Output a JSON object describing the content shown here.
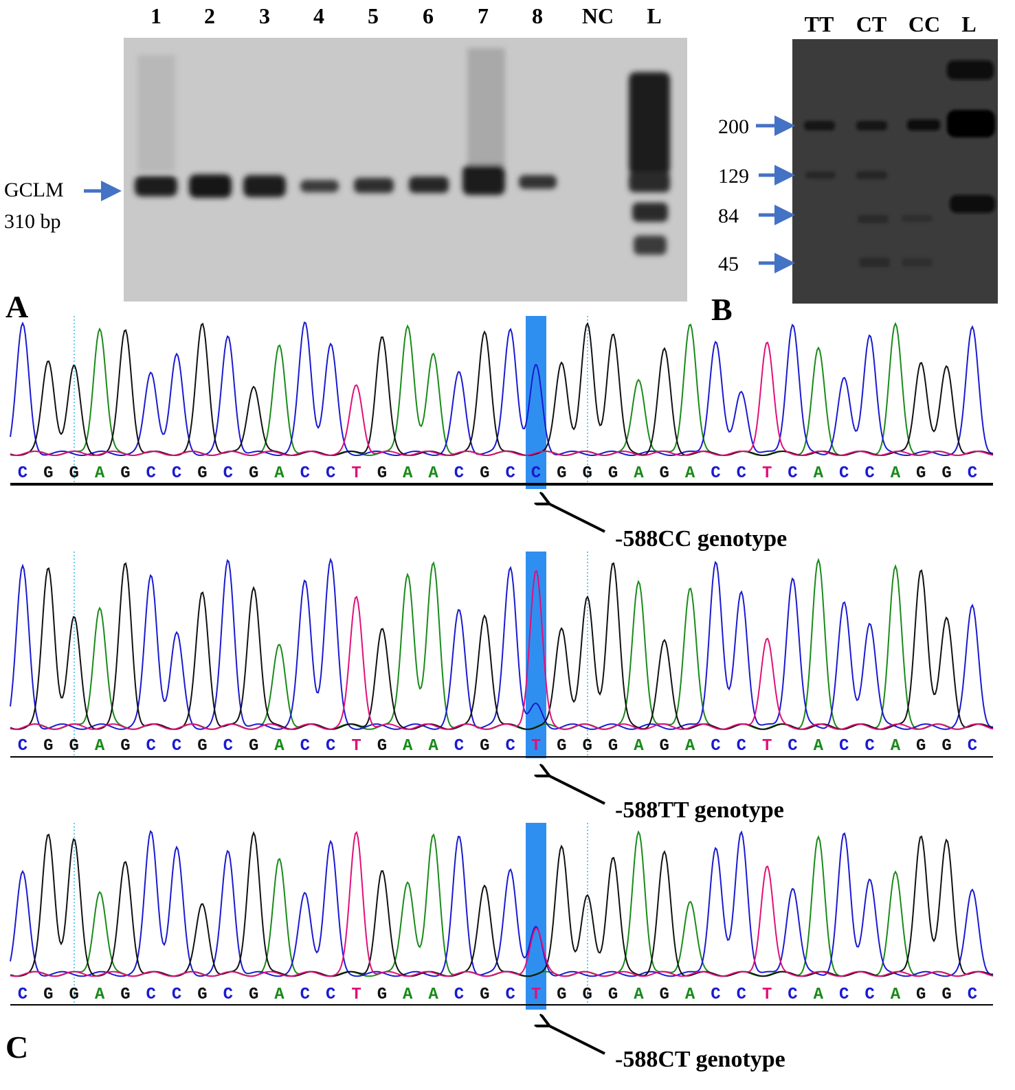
{
  "panel_a": {
    "label": "A",
    "lanes": [
      "1",
      "2",
      "3",
      "4",
      "5",
      "6",
      "7",
      "8",
      "NC",
      "L"
    ],
    "band_label": "GCLM",
    "band_size": "310 bp"
  },
  "panel_b": {
    "label": "B",
    "lanes": [
      "TT",
      "CT",
      "CC",
      "L"
    ],
    "sizes": [
      "200",
      "129",
      "84",
      "45"
    ]
  },
  "panel_c": {
    "label": "C",
    "chromatograms": [
      {
        "bases": [
          "C",
          "G",
          "G",
          "A",
          "G",
          "C",
          "C",
          "G",
          "C",
          "G",
          "A",
          "C",
          "C",
          "T",
          "G",
          "A",
          "A",
          "C",
          "G",
          "C",
          "C",
          "G",
          "G",
          "G",
          "A",
          "G",
          "A",
          "C",
          "C",
          "T",
          "C",
          "A",
          "C",
          "C",
          "A",
          "G",
          "G",
          "C"
        ],
        "genotype": "-588CC genotype"
      },
      {
        "bases": [
          "C",
          "G",
          "G",
          "A",
          "G",
          "C",
          "C",
          "G",
          "C",
          "G",
          "A",
          "C",
          "C",
          "T",
          "G",
          "A",
          "A",
          "C",
          "G",
          "C",
          "T",
          "G",
          "G",
          "G",
          "A",
          "G",
          "A",
          "C",
          "C",
          "T",
          "C",
          "A",
          "C",
          "C",
          "A",
          "G",
          "G",
          "C"
        ],
        "genotype": "-588TT genotype"
      },
      {
        "bases": [
          "C",
          "G",
          "G",
          "A",
          "G",
          "C",
          "C",
          "G",
          "C",
          "G",
          "A",
          "C",
          "C",
          "T",
          "G",
          "A",
          "A",
          "C",
          "G",
          "C",
          "T",
          "G",
          "G",
          "G",
          "A",
          "G",
          "A",
          "C",
          "C",
          "T",
          "C",
          "A",
          "C",
          "C",
          "A",
          "G",
          "G",
          "C"
        ],
        "genotype": "-588CT genotype"
      }
    ]
  }
}
